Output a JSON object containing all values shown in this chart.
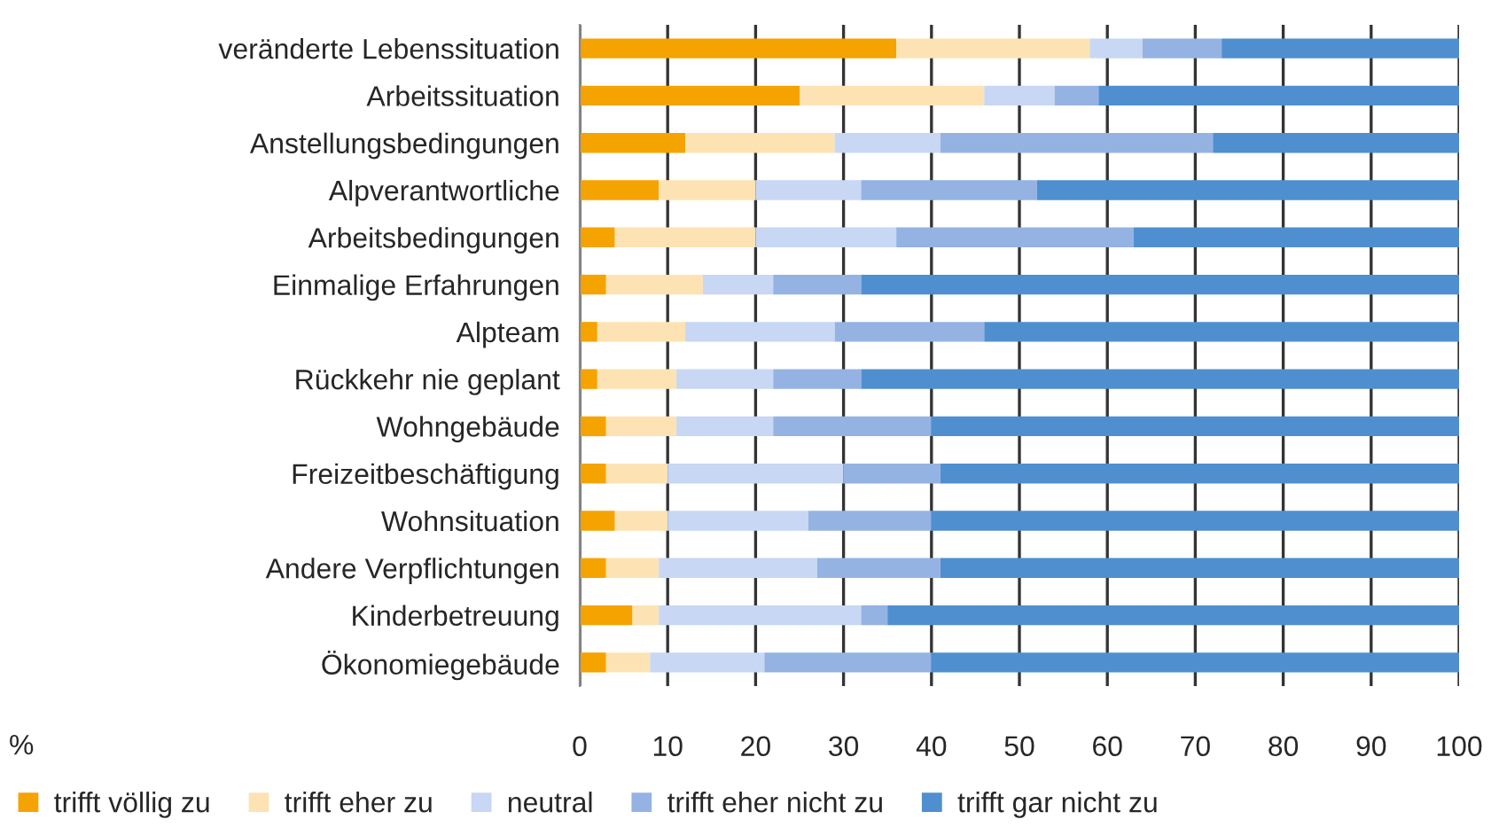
{
  "chart_data": {
    "type": "bar",
    "orientation": "horizontal",
    "stacked": true,
    "annotations": [
      "%"
    ],
    "categories": [
      "veränderte Lebenssituation",
      "Arbeitssituation",
      "Anstellungsbedingungen",
      "Alpverantwortliche",
      "Arbeitsbedingungen",
      "Einmalige Erfahrungen",
      "Alpteam",
      "Rückkehr nie geplant",
      "Wohngebäude",
      "Freizeitbeschäftigung",
      "Wohnsituation",
      "Andere Verpflichtungen",
      "Kinderbetreuung",
      "Ökonomiegebäude"
    ],
    "series": [
      {
        "name": "trifft völlig zu",
        "color": "#f5a300",
        "values": [
          36,
          25,
          12,
          9,
          4,
          3,
          2,
          2,
          3,
          3,
          4,
          3,
          6,
          3
        ]
      },
      {
        "name": "trifft eher zu",
        "color": "#fde3b3",
        "values": [
          22,
          21,
          17,
          11,
          16,
          11,
          10,
          9,
          8,
          7,
          6,
          6,
          3,
          5
        ]
      },
      {
        "name": "neutral",
        "color": "#c7d7f4",
        "values": [
          6,
          8,
          12,
          12,
          16,
          8,
          17,
          11,
          11,
          20,
          16,
          18,
          23,
          13
        ]
      },
      {
        "name": "trifft eher nicht zu",
        "color": "#94b3e3",
        "values": [
          9,
          5,
          31,
          20,
          27,
          10,
          17,
          10,
          18,
          11,
          14,
          14,
          3,
          19
        ]
      },
      {
        "name": "trifft gar nicht zu",
        "color": "#4f8fcf",
        "values": [
          27,
          41,
          28,
          48,
          37,
          68,
          54,
          68,
          60,
          59,
          60,
          59,
          65,
          60
        ]
      }
    ],
    "xlim": [
      0,
      100
    ],
    "xticks": [
      0,
      10,
      20,
      30,
      40,
      50,
      60,
      70,
      80,
      90,
      100
    ],
    "grid": "x",
    "legend": "bottom"
  }
}
